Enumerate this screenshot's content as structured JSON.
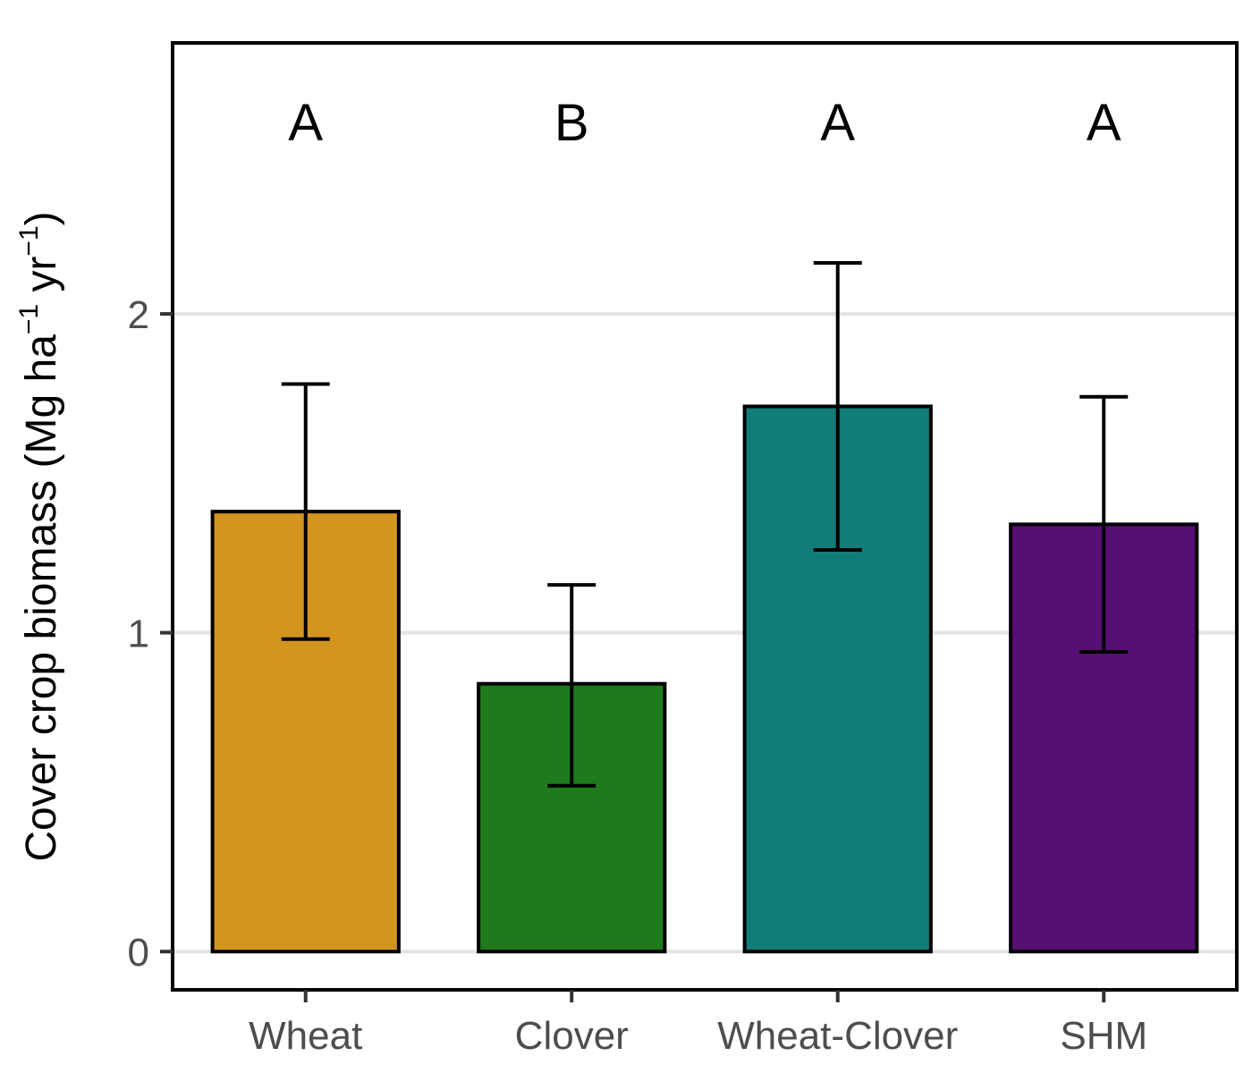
{
  "chart_data": {
    "type": "bar",
    "title": "",
    "xlabel": "",
    "ylabel": {
      "prefix": "Cover crop biomass (Mg ha",
      "sup1": "−1",
      "middle": "yr",
      "sup2": "−1",
      "suffix": ")"
    },
    "categories": [
      "Wheat",
      "Clover",
      "Wheat-Clover",
      "SHM"
    ],
    "values": [
      1.38,
      0.84,
      1.71,
      1.34
    ],
    "error_low": [
      0.98,
      0.52,
      1.26,
      0.94
    ],
    "error_high": [
      1.78,
      1.15,
      2.16,
      1.74
    ],
    "significance_letters": [
      "A",
      "B",
      "A",
      "A"
    ],
    "colors": [
      "#D4951E",
      "#1F7A1C",
      "#127C79",
      "#560F72"
    ],
    "ylim": [
      -0.12,
      2.85
    ],
    "yticks": [
      0,
      1,
      2
    ],
    "grid": true
  }
}
